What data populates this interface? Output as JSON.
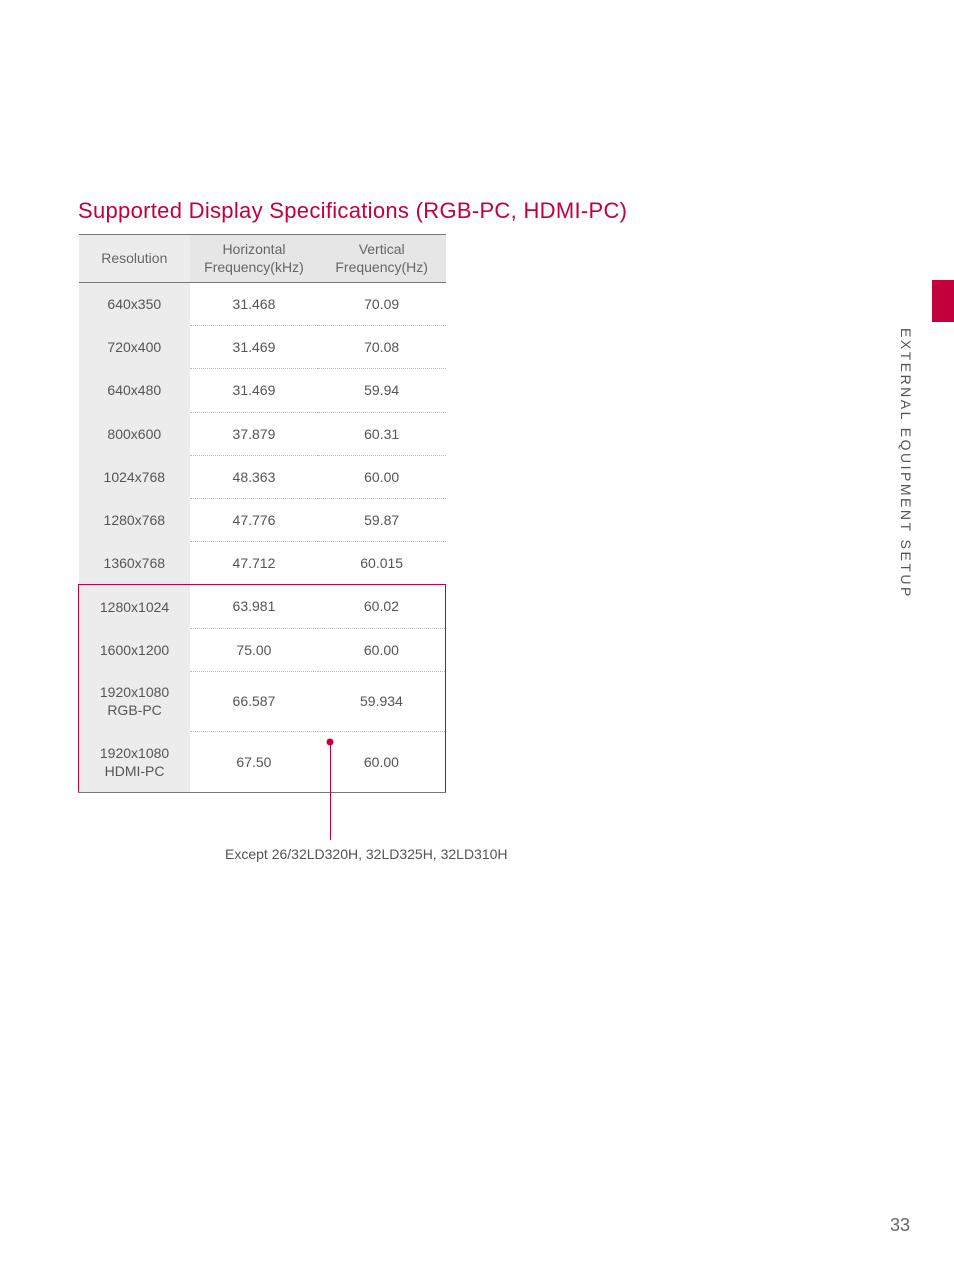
{
  "title": {
    "text": "Supported Display Specifications (RGB-PC, HDMI-PC)",
    "color": "#c3003b"
  },
  "section_label": "EXTERNAL EQUIPMENT SETUP",
  "page_number": "33",
  "accent_color": "#c3003b",
  "table": {
    "columns": [
      {
        "label": "Resolution"
      },
      {
        "label": "Horizontal\nFrequency(kHz)"
      },
      {
        "label": "Vertical\nFrequency(Hz)"
      }
    ],
    "rows": [
      {
        "res": "640x350",
        "hf": "31.468",
        "vf": "70.09"
      },
      {
        "res": "720x400",
        "hf": "31.469",
        "vf": "70.08"
      },
      {
        "res": "640x480",
        "hf": "31.469",
        "vf": "59.94"
      },
      {
        "res": "800x600",
        "hf": "37.879",
        "vf": "60.31"
      },
      {
        "res": "1024x768",
        "hf": "48.363",
        "vf": "60.00"
      },
      {
        "res": "1280x768",
        "hf": "47.776",
        "vf": "59.87"
      },
      {
        "res": "1360x768",
        "hf": "47.712",
        "vf": "60.015"
      },
      {
        "res": "1280x1024",
        "hf": "63.981",
        "vf": "60.02"
      },
      {
        "res": "1600x1200",
        "hf": "75.00",
        "vf": "60.00"
      },
      {
        "res": "1920x1080\nRGB-PC",
        "hf": "66.587",
        "vf": "59.934"
      },
      {
        "res": "1920x1080\nHDMI-PC",
        "hf": "67.50",
        "vf": "60.00"
      }
    ],
    "highlight_range": {
      "start": 7,
      "end": 10
    },
    "header_bg": "#e6e6e6",
    "rescol_bg": "#ececec",
    "border_color": "#777777",
    "dotted_color": "#bbbbbb"
  },
  "callout": {
    "text": "Except 26/32LD320H, 32LD325H, 32LD310H",
    "line_color": "#c3003b"
  }
}
